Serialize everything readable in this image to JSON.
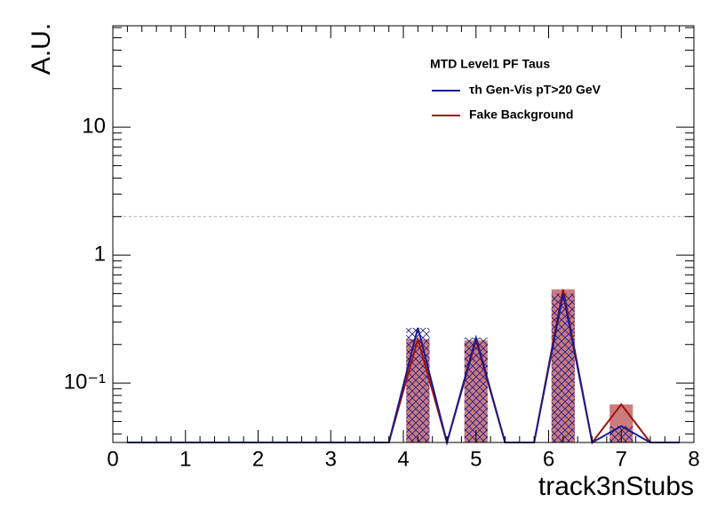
{
  "chart_data": {
    "type": "histogram-line",
    "x_label": "track3nStubs",
    "y_label": "A.U.",
    "legend_title": "MTD Level1 PF Taus",
    "x": [
      0.2,
      0.6,
      1.0,
      1.4,
      1.8,
      2.2,
      2.6,
      3.0,
      3.4,
      3.8,
      4.2,
      4.6,
      5.0,
      5.4,
      5.8,
      6.2,
      6.6,
      7.0,
      7.4,
      7.8
    ],
    "series": [
      {
        "name": "τh Gen-Vis pT>20 GeV",
        "color": "#1a1a8c",
        "fill": "hatch",
        "values": [
          0,
          0,
          0,
          0,
          0,
          0,
          0,
          0,
          0,
          0,
          0.27,
          0,
          0.226,
          0,
          0,
          0.5,
          0,
          0.046,
          0,
          0
        ]
      },
      {
        "name": "Fake Background",
        "color": "#a01010",
        "fill": "solid",
        "values": [
          0,
          0,
          0,
          0,
          0,
          0,
          0,
          0,
          0,
          0,
          0.22,
          0,
          0.215,
          0,
          0,
          0.54,
          0,
          0.068,
          0,
          0
        ]
      }
    ],
    "xlim": [
      0,
      8
    ],
    "xticks": [
      0,
      1,
      2,
      3,
      4,
      5,
      6,
      7,
      8
    ],
    "ylim": [
      0.0343,
      62
    ],
    "yticks": [
      {
        "value": 0.1,
        "label": "10⁻¹"
      },
      1,
      10
    ],
    "log_y": true,
    "hline": 2,
    "legend": "upper-right"
  }
}
